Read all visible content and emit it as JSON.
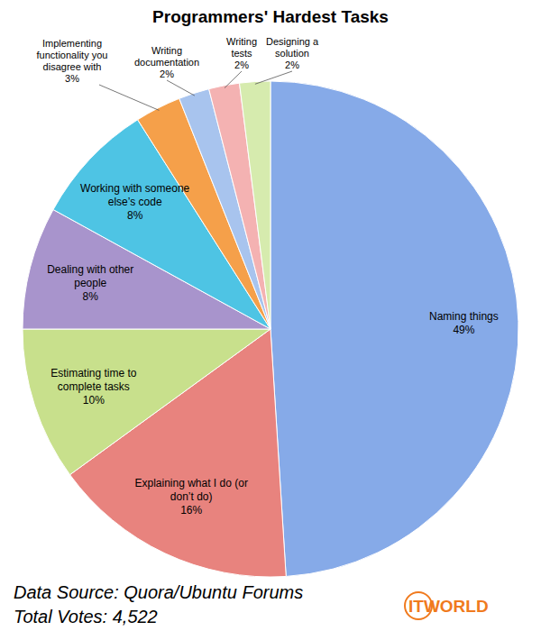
{
  "chart_data": {
    "type": "pie",
    "title": "Programmers' Hardest Tasks",
    "categories": [
      "Naming things",
      "Explaining what I do (or don’t do)",
      "Estimating time to complete tasks",
      "Dealing with other people",
      "Working with someone else’s code",
      "Implementing functionality you disagree with",
      "Writing documentation",
      "Writing tests",
      "Designing a solution"
    ],
    "values": [
      49,
      16,
      10,
      8,
      8,
      3,
      2,
      2,
      2
    ],
    "value_labels": [
      "49%",
      "16%",
      "10%",
      "8%",
      "8%",
      "3%",
      "2%",
      "2%",
      "2%"
    ],
    "colors": [
      "#86aae8",
      "#e8837e",
      "#c8e08c",
      "#a894cc",
      "#4ec4e4",
      "#f5a04a",
      "#a8c4ee",
      "#f4b2b2",
      "#d6ebae"
    ],
    "data_labels": true,
    "annotations": [
      "Data Source: Quora/Ubuntu Forums",
      "Total Votes: 4,522",
      "ITWORLD"
    ]
  }
}
